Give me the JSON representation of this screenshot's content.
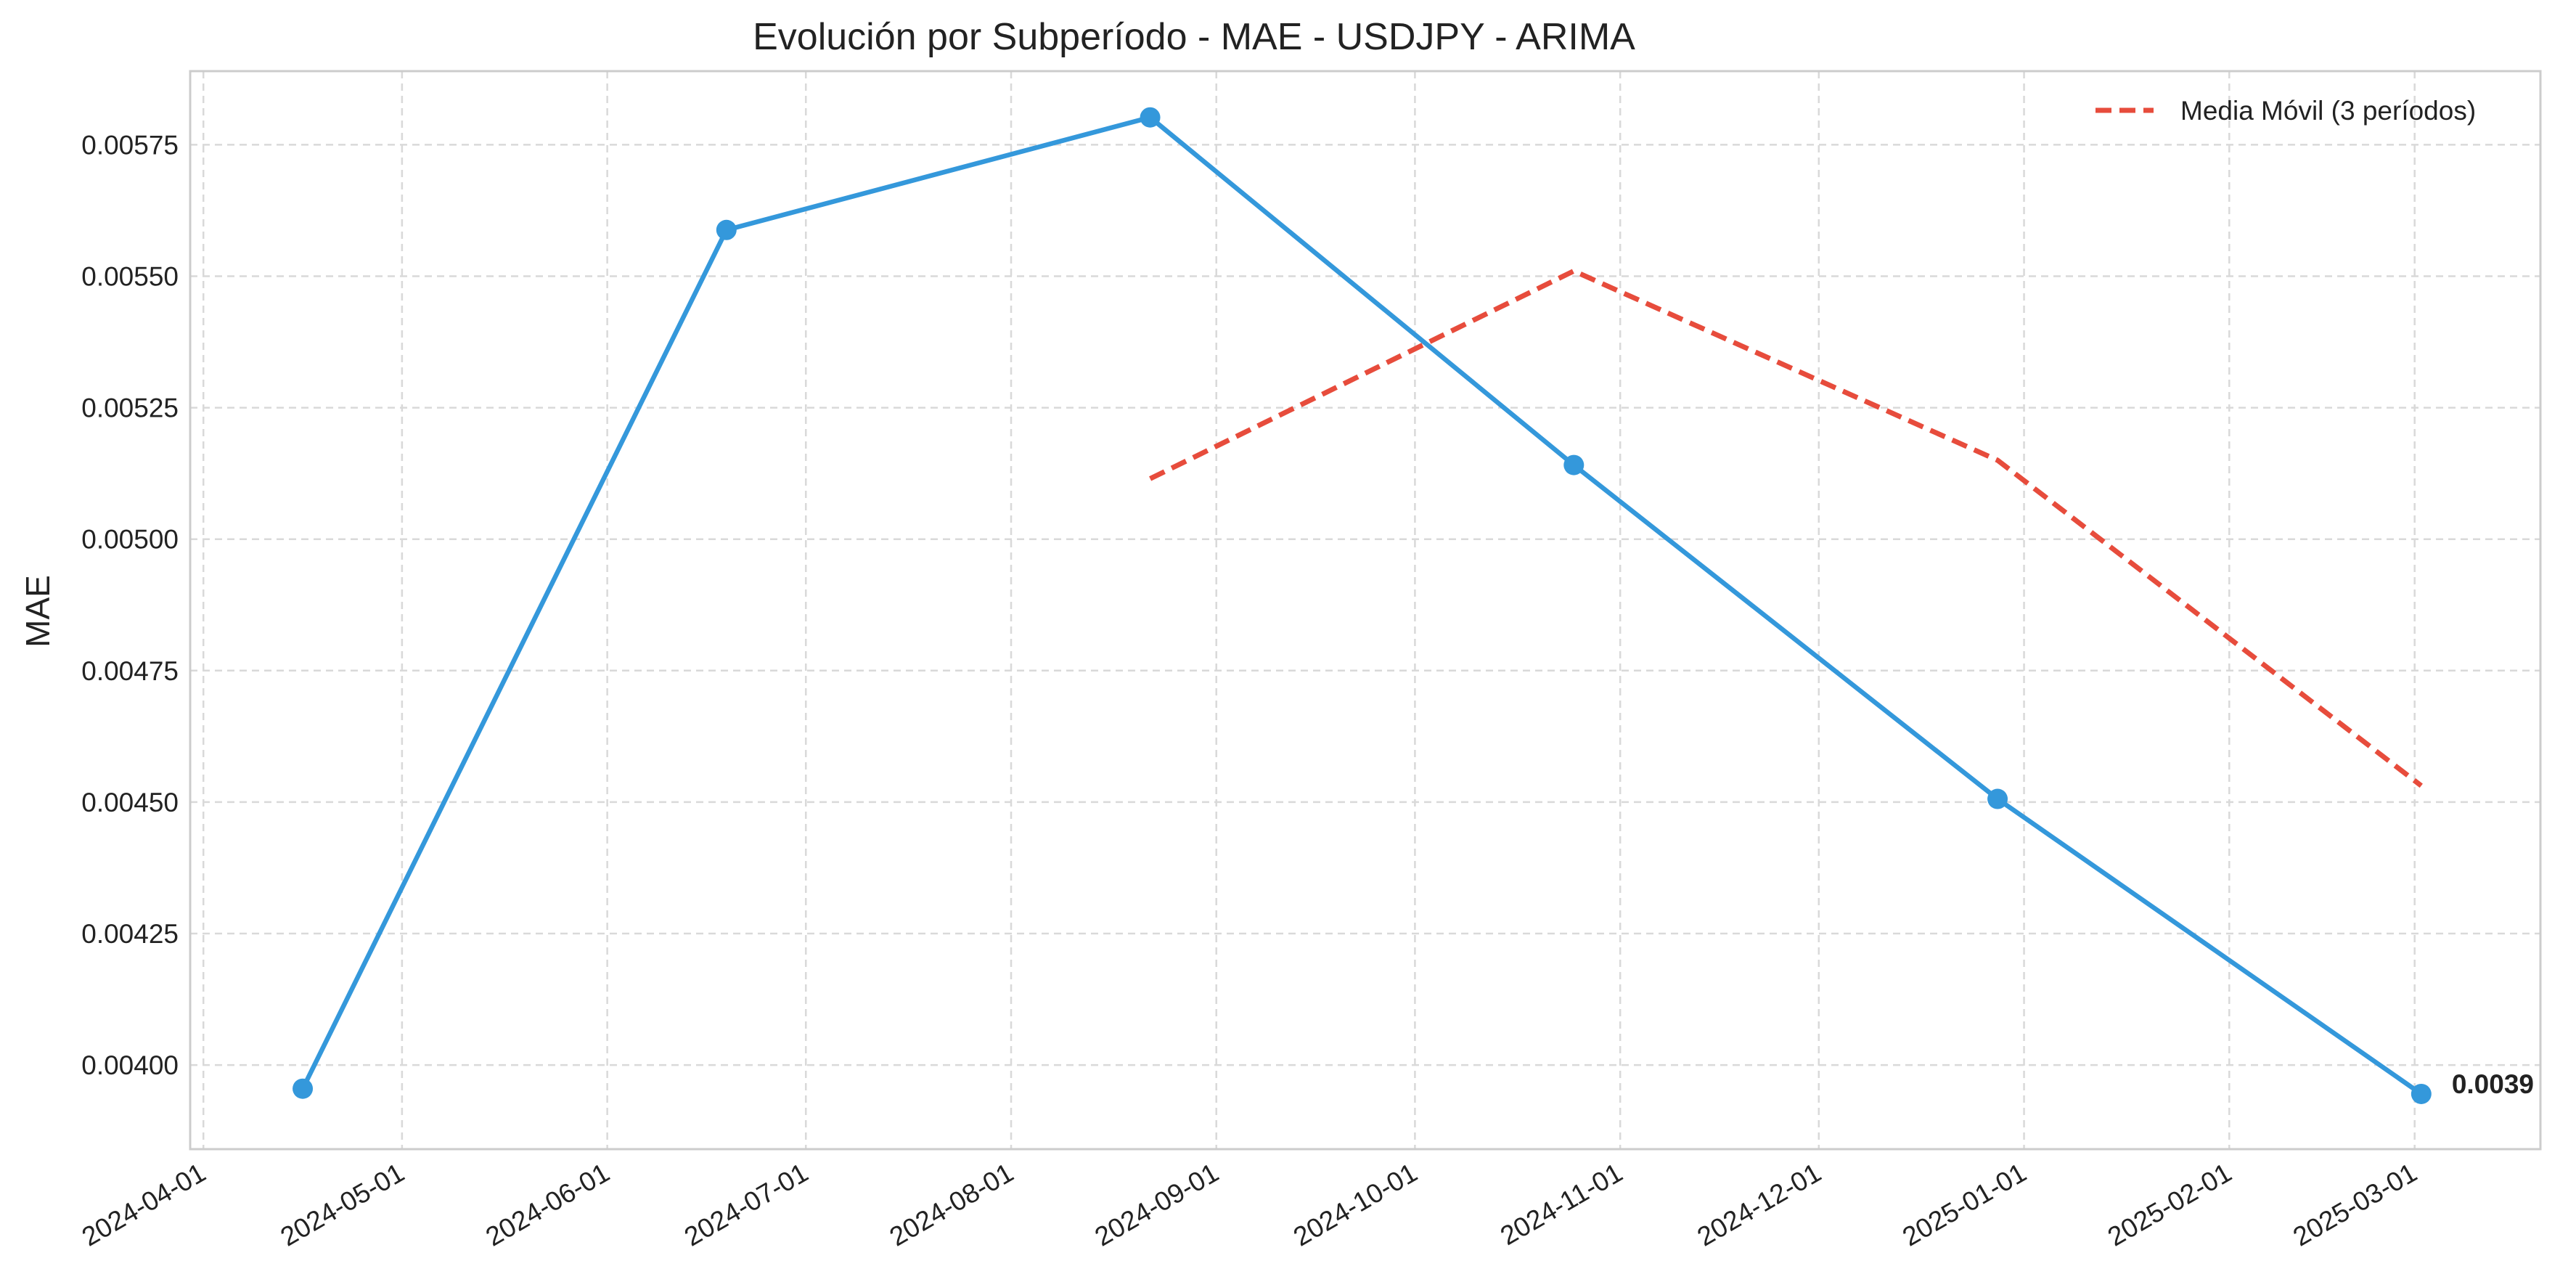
{
  "chart_data": {
    "type": "line",
    "title": "Evolución por Subperíodo - MAE - USDJPY - ARIMA",
    "xlabel": "",
    "ylabel": "MAE",
    "x_type": "date",
    "xlim": [
      "2024-03-30",
      "2025-03-20"
    ],
    "ylim": [
      0.00384,
      0.00589
    ],
    "x_ticks": [
      "2024-04-01",
      "2024-05-01",
      "2024-06-01",
      "2024-07-01",
      "2024-08-01",
      "2024-09-01",
      "2024-10-01",
      "2024-11-01",
      "2024-12-01",
      "2025-01-01",
      "2025-02-01",
      "2025-03-01"
    ],
    "y_ticks": [
      0.004,
      0.00425,
      0.0045,
      0.00475,
      0.005,
      0.00525,
      0.0055,
      0.00575
    ],
    "y_tick_labels": [
      "0.00400",
      "0.00425",
      "0.00450",
      "0.00475",
      "0.00500",
      "0.00525",
      "0.00550",
      "0.00575"
    ],
    "grid": true,
    "legend_position": "top-right",
    "series": [
      {
        "name": "",
        "style": "solid-markers",
        "color": "#3498db",
        "x": [
          "2024-04-16",
          "2024-06-19",
          "2024-08-22",
          "2024-10-25",
          "2024-12-28",
          "2025-03-02"
        ],
        "values": [
          0.003955,
          0.005588,
          0.005802,
          0.005141,
          0.004506,
          0.003945
        ]
      },
      {
        "name": "Media Móvil (3 períodos)",
        "style": "dashed",
        "color": "#e74c3c",
        "x": [
          "2024-08-22",
          "2024-10-25",
          "2024-12-28",
          "2025-03-02"
        ],
        "values": [
          0.005115,
          0.00551,
          0.00515,
          0.004531
        ]
      }
    ],
    "annotations": [
      {
        "text": "0.0039",
        "x": "2025-03-02",
        "y": 0.003945
      }
    ]
  }
}
